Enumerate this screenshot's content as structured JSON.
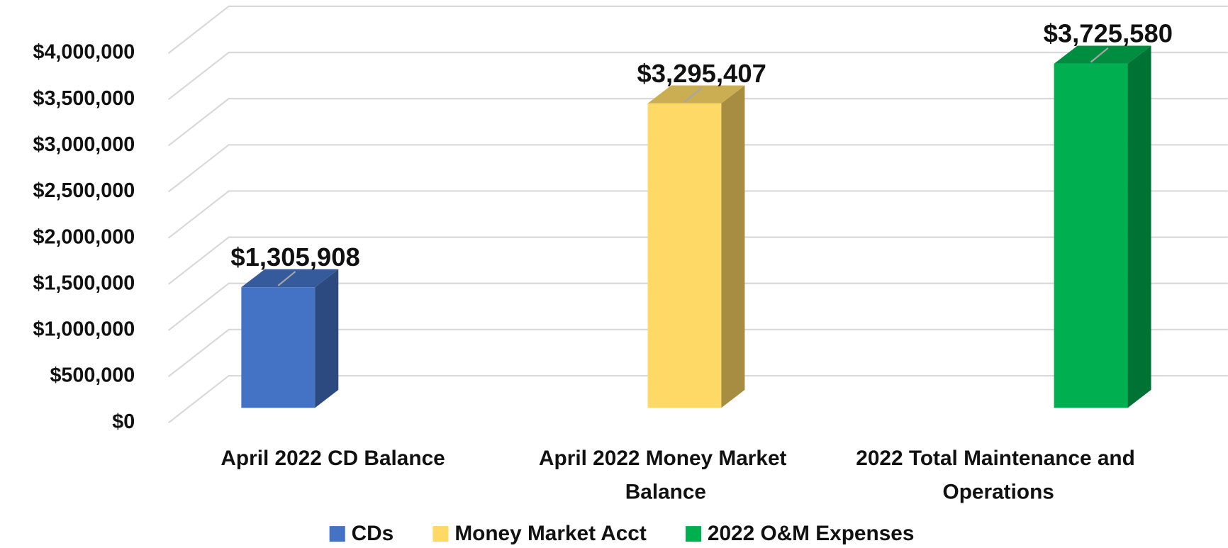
{
  "chart_data": {
    "type": "bar3d",
    "categories": [
      "April 2022 CD Balance",
      "April 2022 Money Market Balance",
      "2022 Total Maintenance and Operations"
    ],
    "series": [
      {
        "name": "CDs",
        "color": "#4472c4",
        "values": [
          1305908,
          null,
          null
        ],
        "value_labels": [
          "$1,305,908",
          null,
          null
        ]
      },
      {
        "name": "Money Market Acct",
        "color": "#ffd966",
        "values": [
          null,
          3295407,
          null
        ],
        "value_labels": [
          null,
          "$3,295,407",
          null
        ]
      },
      {
        "name": "2022 O&M Expenses",
        "color": "#00b050",
        "values": [
          null,
          null,
          3725580
        ],
        "value_labels": [
          null,
          null,
          "$3,725,580"
        ]
      }
    ],
    "ylim": [
      0,
      4000000
    ],
    "yticks": [
      {
        "value": 0,
        "label": "$0"
      },
      {
        "value": 500000,
        "label": "$500,000"
      },
      {
        "value": 1000000,
        "label": "$1,000,000"
      },
      {
        "value": 1500000,
        "label": "$1,500,000"
      },
      {
        "value": 2000000,
        "label": "$2,000,000"
      },
      {
        "value": 2500000,
        "label": "$2,500,000"
      },
      {
        "value": 3000000,
        "label": "$3,000,000"
      },
      {
        "value": 3500000,
        "label": "$3,500,000"
      },
      {
        "value": 4000000,
        "label": "$4,000,000"
      }
    ],
    "grid": true,
    "legend": "bottom"
  }
}
